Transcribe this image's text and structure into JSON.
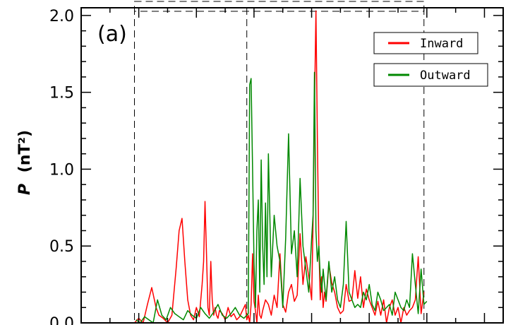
{
  "chart_data": {
    "type": "line",
    "panel_label": "(a)",
    "ylabel_symbol": "P",
    "ylabel_units": "(nT²)",
    "xlabel": "",
    "ylim": [
      0,
      2.05
    ],
    "yticks": [
      0.0,
      0.5,
      1.0,
      1.5,
      2.0
    ],
    "ytick_labels": [
      "0.0",
      "0.5",
      "1.0",
      "1.5",
      "2.0"
    ],
    "xlim": [
      0,
      293
    ],
    "x_major_ticks": [
      0,
      40,
      80,
      120,
      160,
      200,
      240,
      280
    ],
    "x_minor_step": 20,
    "vlines_dashed": [
      37,
      115,
      238
    ],
    "dashed_box_x": [
      37,
      238
    ],
    "legend": {
      "placement": "top-right",
      "entries": [
        "Inward",
        "Outward"
      ]
    },
    "colors": {
      "Inward": "#ff0000",
      "Outward": "#008800"
    },
    "series": [
      {
        "name": "Inward",
        "x": [
          37,
          40,
          43,
          46,
          49,
          52,
          54,
          57,
          60,
          63,
          66,
          68,
          70,
          72,
          74,
          76,
          78,
          80,
          82,
          84,
          85,
          86,
          87,
          88,
          89,
          90,
          91,
          92,
          93,
          94,
          95,
          96,
          98,
          100,
          102,
          104,
          106,
          108,
          110,
          112,
          114,
          115,
          116,
          117,
          118,
          119,
          120,
          121,
          122,
          123,
          124,
          125,
          126,
          128,
          130,
          132,
          134,
          136,
          138,
          140,
          142,
          144,
          146,
          148,
          150,
          152,
          154,
          156,
          158,
          160,
          161,
          162,
          163,
          164,
          165,
          166,
          167,
          168,
          169,
          170,
          172,
          174,
          176,
          178,
          180,
          182,
          184,
          186,
          188,
          190,
          192,
          194,
          196,
          198,
          200,
          202,
          204,
          206,
          208,
          210,
          212,
          214,
          216,
          218,
          220,
          222,
          224,
          226,
          228,
          230,
          232,
          234,
          236,
          238
        ],
        "y": [
          0.0,
          0.03,
          0.0,
          0.12,
          0.23,
          0.1,
          0.05,
          0.03,
          0.0,
          0.05,
          0.36,
          0.6,
          0.68,
          0.4,
          0.15,
          0.05,
          0.02,
          0.1,
          0.04,
          0.25,
          0.4,
          0.79,
          0.45,
          0.1,
          0.05,
          0.4,
          0.15,
          0.05,
          0.1,
          0.05,
          0.03,
          0.08,
          0.06,
          0.02,
          0.1,
          0.04,
          0.06,
          0.02,
          0.04,
          0.08,
          0.12,
          0.02,
          0.05,
          0.0,
          0.12,
          0.45,
          0.14,
          0.08,
          0.0,
          0.18,
          0.05,
          0.03,
          0.08,
          0.15,
          0.12,
          0.05,
          0.18,
          0.1,
          0.45,
          0.12,
          0.07,
          0.2,
          0.25,
          0.14,
          0.18,
          0.58,
          0.25,
          0.43,
          0.3,
          0.15,
          0.65,
          1.4,
          2.03,
          1.2,
          0.5,
          0.15,
          0.3,
          0.1,
          0.2,
          0.14,
          0.38,
          0.26,
          0.2,
          0.1,
          0.06,
          0.08,
          0.25,
          0.14,
          0.15,
          0.34,
          0.16,
          0.3,
          0.1,
          0.22,
          0.15,
          0.1,
          0.05,
          0.14,
          0.05,
          0.15,
          0.0,
          0.1,
          0.15,
          0.05,
          0.1,
          0.0,
          0.1,
          0.05,
          0.08,
          0.1,
          0.15,
          0.43,
          0.06,
          0.2
        ]
      },
      {
        "name": "Outward",
        "x": [
          38,
          41,
          44,
          47,
          50,
          53,
          56,
          59,
          62,
          65,
          68,
          71,
          74,
          77,
          80,
          83,
          86,
          89,
          92,
          95,
          98,
          101,
          104,
          107,
          110,
          113,
          116,
          117,
          118,
          119,
          120,
          121,
          122,
          123,
          124,
          125,
          126,
          127,
          128,
          129,
          130,
          132,
          134,
          136,
          138,
          140,
          142,
          144,
          146,
          148,
          150,
          152,
          154,
          156,
          158,
          160,
          161,
          162,
          163,
          164,
          165,
          166,
          167,
          168,
          169,
          170,
          172,
          174,
          176,
          178,
          180,
          182,
          184,
          186,
          188,
          190,
          192,
          194,
          196,
          198,
          200,
          202,
          204,
          206,
          208,
          210,
          212,
          214,
          216,
          218,
          220,
          222,
          224,
          226,
          228,
          230,
          232,
          234,
          236,
          238,
          240
        ],
        "y": [
          0.02,
          0.0,
          0.04,
          0.02,
          0.0,
          0.15,
          0.05,
          0.02,
          0.1,
          0.06,
          0.04,
          0.02,
          0.08,
          0.05,
          0.03,
          0.1,
          0.06,
          0.03,
          0.07,
          0.12,
          0.05,
          0.03,
          0.06,
          0.1,
          0.05,
          0.03,
          0.06,
          1.55,
          1.59,
          1.0,
          0.4,
          0.1,
          0.6,
          0.8,
          0.2,
          1.06,
          0.5,
          0.25,
          0.78,
          0.3,
          1.1,
          0.3,
          0.7,
          0.5,
          0.4,
          0.1,
          0.55,
          1.23,
          0.45,
          0.6,
          0.3,
          0.94,
          0.5,
          0.35,
          0.2,
          0.55,
          0.7,
          1.63,
          0.6,
          0.4,
          0.5,
          0.3,
          0.2,
          0.35,
          0.25,
          0.15,
          0.4,
          0.2,
          0.3,
          0.15,
          0.1,
          0.25,
          0.66,
          0.2,
          0.15,
          0.1,
          0.12,
          0.1,
          0.2,
          0.15,
          0.25,
          0.12,
          0.08,
          0.2,
          0.15,
          0.08,
          0.1,
          0.12,
          0.05,
          0.2,
          0.15,
          0.1,
          0.08,
          0.15,
          0.1,
          0.45,
          0.25,
          0.06,
          0.35,
          0.12,
          0.14
        ]
      }
    ]
  }
}
